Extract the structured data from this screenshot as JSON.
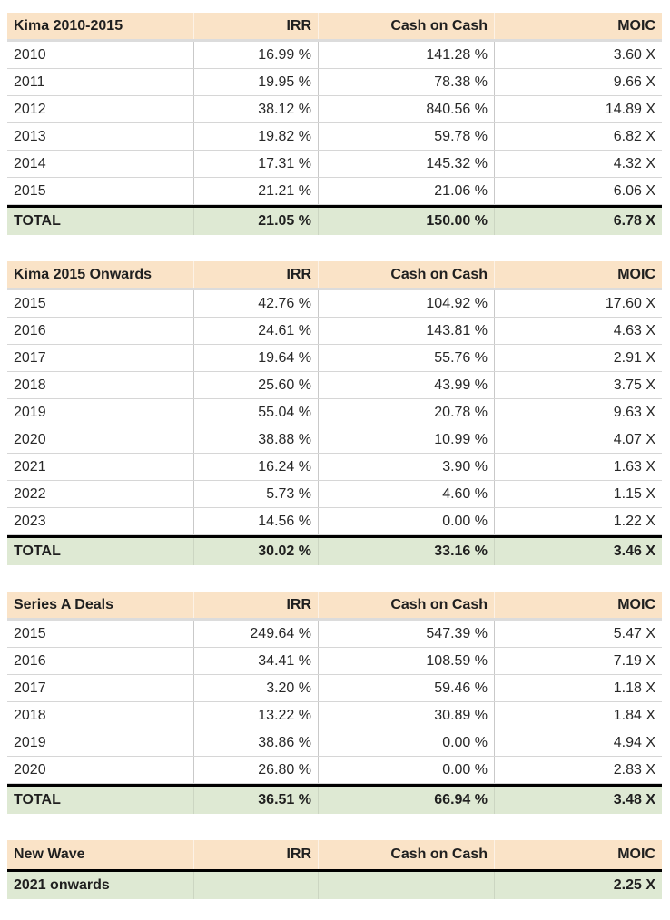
{
  "colors": {
    "header_bg": "#fae3c7",
    "total_bg": "#dee9d3",
    "row_separator": "#d6d6d6",
    "column_separator": "#c9c9c9",
    "total_top_border": "#000000",
    "text": "#282828"
  },
  "tables": [
    {
      "title": "Kima 2010-2015",
      "columns": [
        "IRR",
        "Cash on Cash",
        "MOIC"
      ],
      "rows": [
        {
          "total": false,
          "cells": [
            "2010",
            "16.99 %",
            "141.28 %",
            "3.60 X"
          ]
        },
        {
          "total": false,
          "cells": [
            "2011",
            "19.95 %",
            "78.38 %",
            "9.66 X"
          ]
        },
        {
          "total": false,
          "cells": [
            "2012",
            "38.12 %",
            "840.56 %",
            "14.89 X"
          ]
        },
        {
          "total": false,
          "cells": [
            "2013",
            "19.82 %",
            "59.78 %",
            "6.82 X"
          ]
        },
        {
          "total": false,
          "cells": [
            "2014",
            "17.31 %",
            "145.32 %",
            "4.32 X"
          ]
        },
        {
          "total": false,
          "cells": [
            "2015",
            "21.21 %",
            "21.06 %",
            "6.06 X"
          ]
        },
        {
          "total": true,
          "cells": [
            "TOTAL",
            "21.05 %",
            "150.00 %",
            "6.78 X"
          ]
        }
      ]
    },
    {
      "title": "Kima 2015 Onwards",
      "columns": [
        "IRR",
        "Cash on Cash",
        "MOIC"
      ],
      "rows": [
        {
          "total": false,
          "cells": [
            "2015",
            "42.76 %",
            "104.92 %",
            "17.60 X"
          ]
        },
        {
          "total": false,
          "cells": [
            "2016",
            "24.61 %",
            "143.81 %",
            "4.63 X"
          ]
        },
        {
          "total": false,
          "cells": [
            "2017",
            "19.64 %",
            "55.76 %",
            "2.91 X"
          ]
        },
        {
          "total": false,
          "cells": [
            "2018",
            "25.60 %",
            "43.99 %",
            "3.75 X"
          ]
        },
        {
          "total": false,
          "cells": [
            "2019",
            "55.04 %",
            "20.78 %",
            "9.63 X"
          ]
        },
        {
          "total": false,
          "cells": [
            "2020",
            "38.88 %",
            "10.99 %",
            "4.07 X"
          ]
        },
        {
          "total": false,
          "cells": [
            "2021",
            "16.24 %",
            "3.90 %",
            "1.63 X"
          ]
        },
        {
          "total": false,
          "cells": [
            "2022",
            "5.73 %",
            "4.60 %",
            "1.15 X"
          ]
        },
        {
          "total": false,
          "cells": [
            "2023",
            "14.56 %",
            "0.00 %",
            "1.22 X"
          ]
        },
        {
          "total": true,
          "cells": [
            "TOTAL",
            "30.02 %",
            "33.16 %",
            "3.46 X"
          ]
        }
      ]
    },
    {
      "title": "Series A Deals",
      "columns": [
        "IRR",
        "Cash on Cash",
        "MOIC"
      ],
      "rows": [
        {
          "total": false,
          "cells": [
            "2015",
            "249.64 %",
            "547.39 %",
            "5.47 X"
          ]
        },
        {
          "total": false,
          "cells": [
            "2016",
            "34.41 %",
            "108.59 %",
            "7.19 X"
          ]
        },
        {
          "total": false,
          "cells": [
            "2017",
            "3.20 %",
            "59.46 %",
            "1.18 X"
          ]
        },
        {
          "total": false,
          "cells": [
            "2018",
            "13.22 %",
            "30.89 %",
            "1.84 X"
          ]
        },
        {
          "total": false,
          "cells": [
            "2019",
            "38.86 %",
            "0.00 %",
            "4.94 X"
          ]
        },
        {
          "total": false,
          "cells": [
            "2020",
            "26.80 %",
            "0.00 %",
            "2.83 X"
          ]
        },
        {
          "total": true,
          "cells": [
            "TOTAL",
            "36.51 %",
            "66.94 %",
            "3.48 X"
          ]
        }
      ]
    },
    {
      "title": "New Wave",
      "columns": [
        "IRR",
        "Cash on Cash",
        "MOIC"
      ],
      "rows": [
        {
          "total": true,
          "cells": [
            "2021 onwards",
            "",
            "",
            "2.25 X"
          ]
        }
      ]
    }
  ]
}
